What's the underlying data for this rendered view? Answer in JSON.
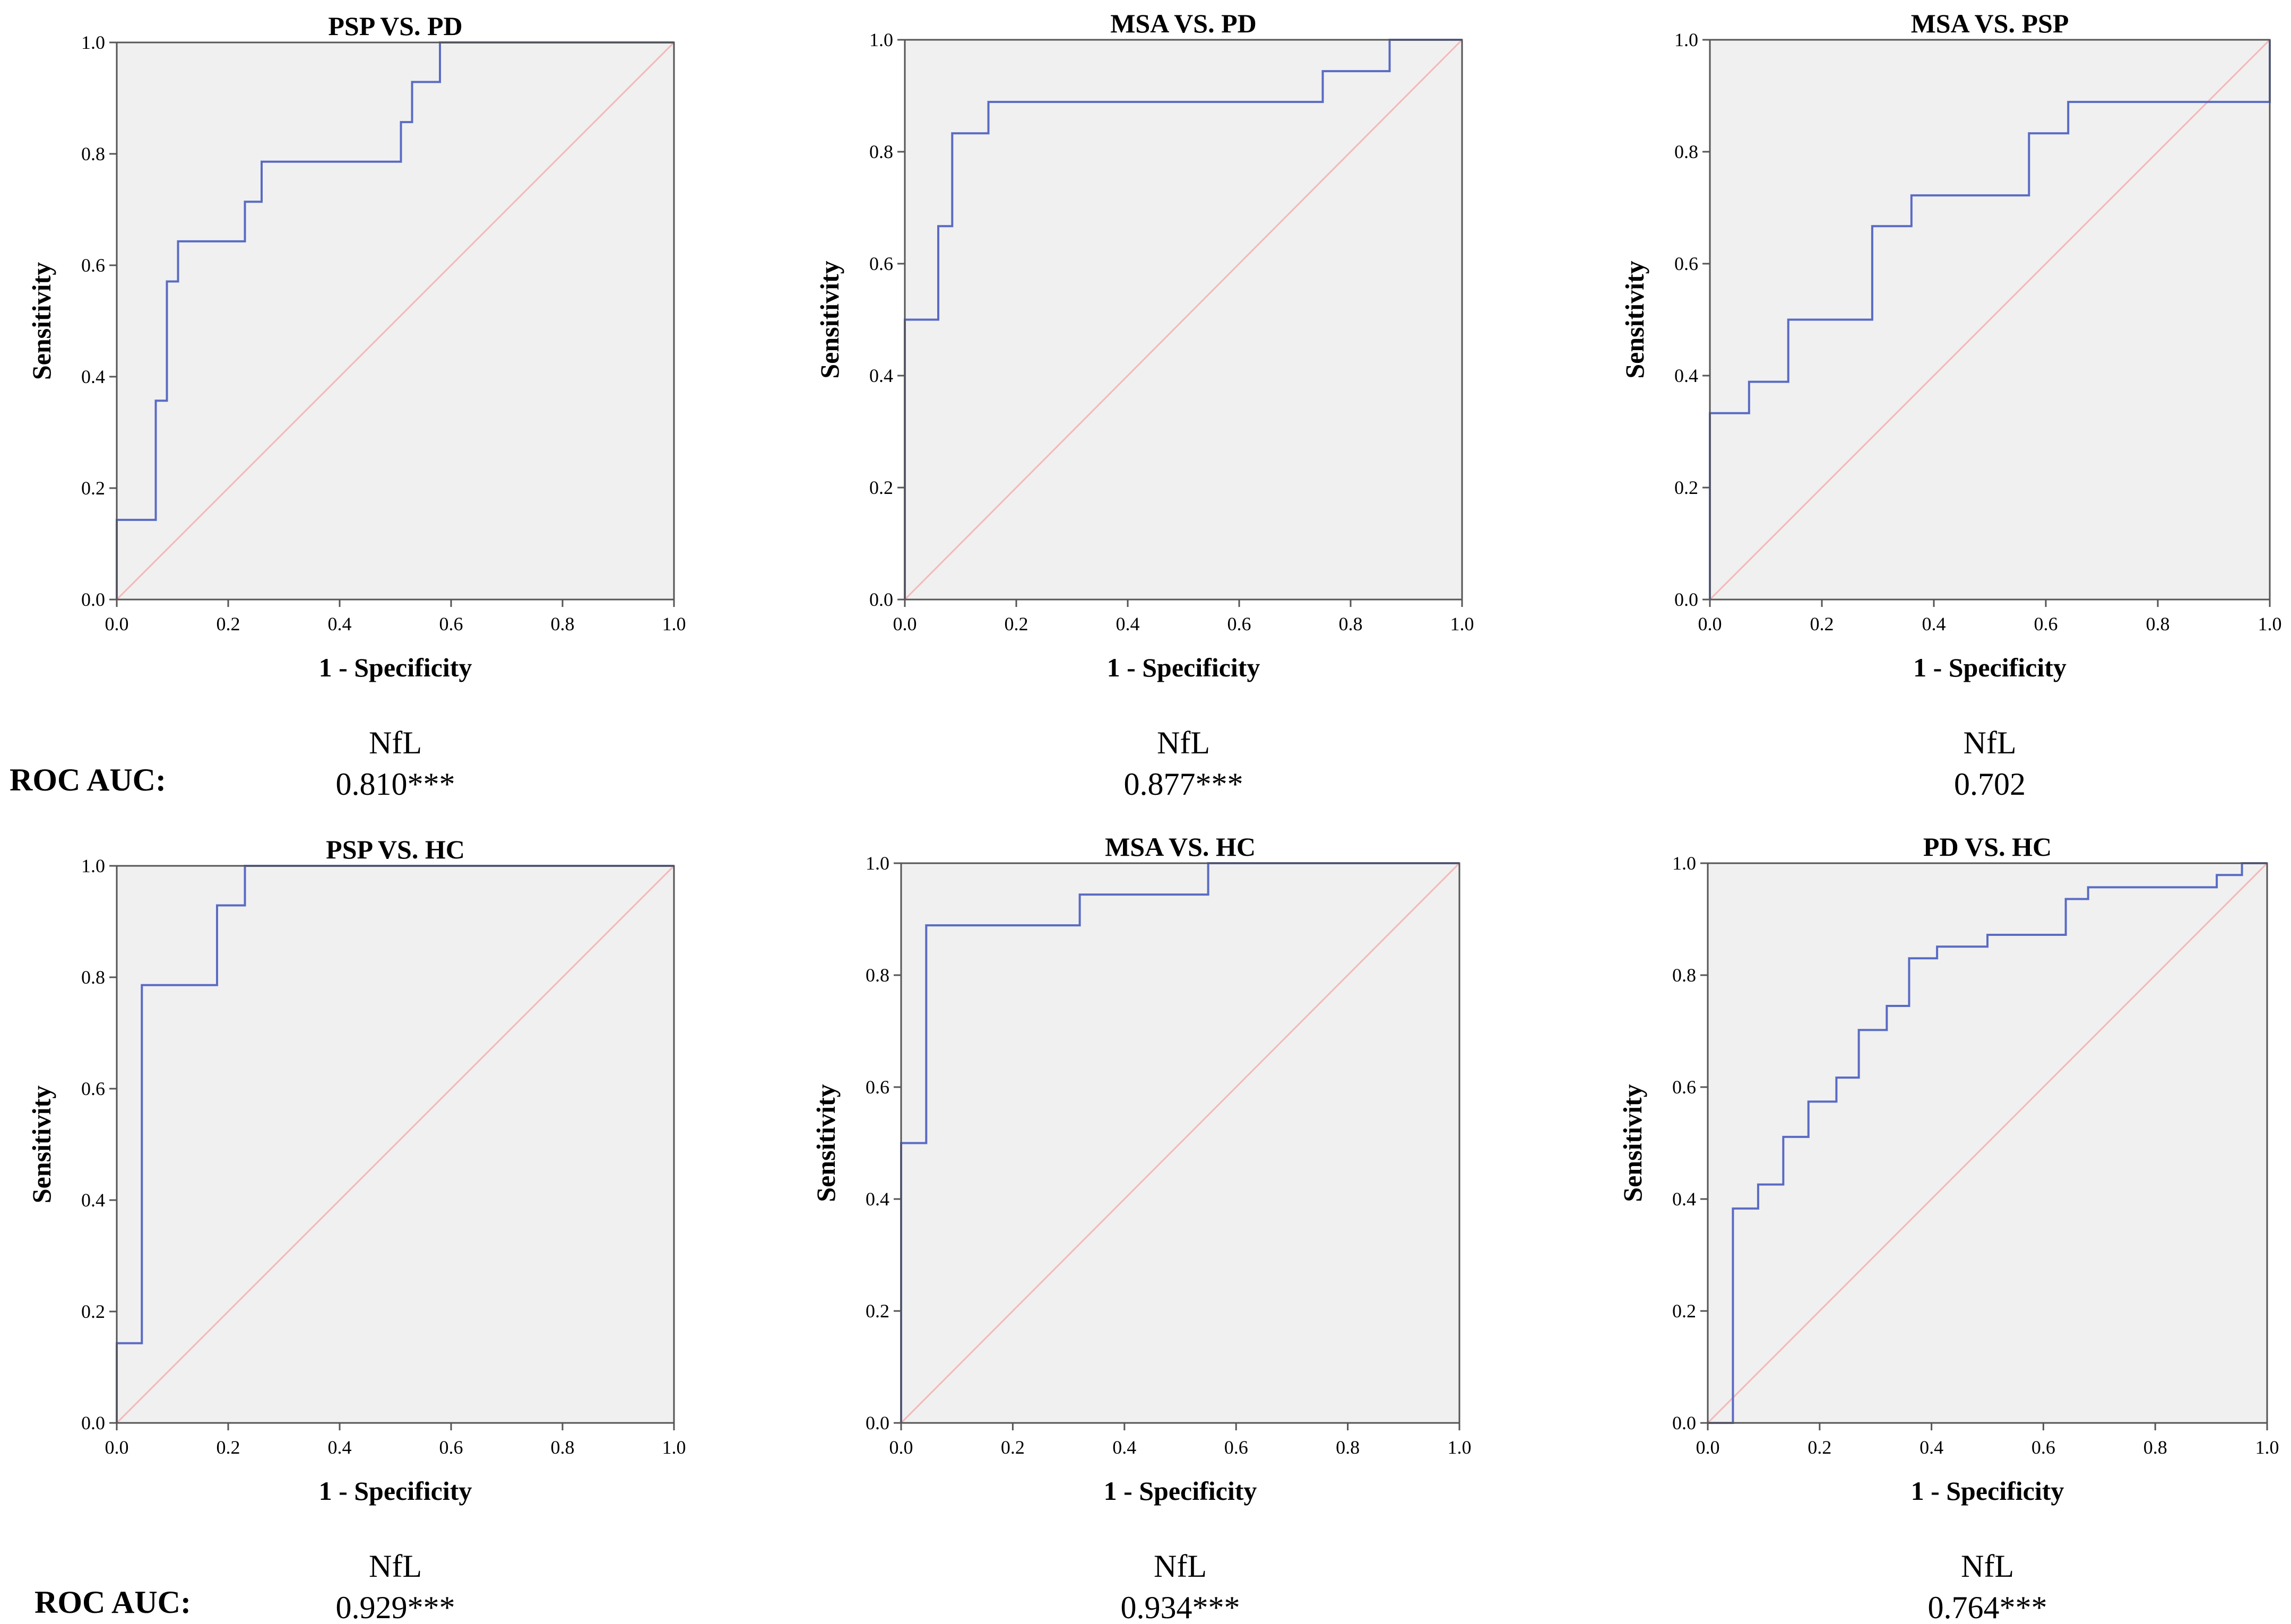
{
  "roc_auc_label": "ROC AUC:",
  "chart_data": [
    {
      "type": "line",
      "title": "PSP VS. PD",
      "xlabel": "1 - Specificity",
      "ylabel": "Sensitivity",
      "xlim": [
        0,
        1
      ],
      "ylim": [
        0,
        1
      ],
      "ticks": [
        "0.0",
        "0.2",
        "0.4",
        "0.6",
        "0.8",
        "1.0"
      ],
      "marker": "NfL",
      "auc": "0.810***",
      "roc": [
        [
          0,
          0
        ],
        [
          0,
          0.143
        ],
        [
          0.07,
          0.143
        ],
        [
          0.07,
          0.357
        ],
        [
          0.09,
          0.357
        ],
        [
          0.09,
          0.571
        ],
        [
          0.11,
          0.571
        ],
        [
          0.11,
          0.643
        ],
        [
          0.23,
          0.643
        ],
        [
          0.23,
          0.714
        ],
        [
          0.26,
          0.714
        ],
        [
          0.26,
          0.786
        ],
        [
          0.51,
          0.786
        ],
        [
          0.51,
          0.857
        ],
        [
          0.53,
          0.857
        ],
        [
          0.53,
          0.929
        ],
        [
          0.58,
          0.929
        ],
        [
          0.58,
          1.0
        ],
        [
          1.0,
          1.0
        ]
      ]
    },
    {
      "type": "line",
      "title": "MSA VS. PD",
      "xlabel": "1 - Specificity",
      "ylabel": "Sensitivity",
      "xlim": [
        0,
        1
      ],
      "ylim": [
        0,
        1
      ],
      "ticks": [
        "0.0",
        "0.2",
        "0.4",
        "0.6",
        "0.8",
        "1.0"
      ],
      "marker": "NfL",
      "auc": "0.877***",
      "roc": [
        [
          0,
          0
        ],
        [
          0,
          0.5
        ],
        [
          0.06,
          0.5
        ],
        [
          0.06,
          0.667
        ],
        [
          0.085,
          0.667
        ],
        [
          0.085,
          0.833
        ],
        [
          0.15,
          0.833
        ],
        [
          0.15,
          0.889
        ],
        [
          0.75,
          0.889
        ],
        [
          0.75,
          0.944
        ],
        [
          0.87,
          0.944
        ],
        [
          0.87,
          1.0
        ],
        [
          1.0,
          1.0
        ]
      ]
    },
    {
      "type": "line",
      "title": "MSA VS. PSP",
      "xlabel": "1 - Specificity",
      "ylabel": "Sensitivity",
      "xlim": [
        0,
        1
      ],
      "ylim": [
        0,
        1
      ],
      "ticks": [
        "0.0",
        "0.2",
        "0.4",
        "0.6",
        "0.8",
        "1.0"
      ],
      "marker": "NfL",
      "auc": "0.702",
      "roc": [
        [
          0,
          0
        ],
        [
          0,
          0.333
        ],
        [
          0.07,
          0.333
        ],
        [
          0.07,
          0.389
        ],
        [
          0.14,
          0.389
        ],
        [
          0.14,
          0.5
        ],
        [
          0.29,
          0.5
        ],
        [
          0.29,
          0.667
        ],
        [
          0.36,
          0.667
        ],
        [
          0.36,
          0.722
        ],
        [
          0.57,
          0.722
        ],
        [
          0.57,
          0.833
        ],
        [
          0.64,
          0.833
        ],
        [
          0.64,
          0.889
        ],
        [
          1.0,
          0.889
        ],
        [
          1.0,
          1.0
        ]
      ]
    },
    {
      "type": "line",
      "title": "PSP VS. HC",
      "xlabel": "1 - Specificity",
      "ylabel": "Sensitivity",
      "xlim": [
        0,
        1
      ],
      "ylim": [
        0,
        1
      ],
      "ticks": [
        "0.0",
        "0.2",
        "0.4",
        "0.6",
        "0.8",
        "1.0"
      ],
      "marker": "NfL",
      "auc": "0.929***",
      "roc": [
        [
          0,
          0
        ],
        [
          0,
          0.143
        ],
        [
          0.045,
          0.143
        ],
        [
          0.045,
          0.786
        ],
        [
          0.18,
          0.786
        ],
        [
          0.18,
          0.929
        ],
        [
          0.23,
          0.929
        ],
        [
          0.23,
          1.0
        ],
        [
          1.0,
          1.0
        ]
      ]
    },
    {
      "type": "line",
      "title": "MSA VS. HC",
      "xlabel": "1 - Specificity",
      "ylabel": "Sensitivity",
      "xlim": [
        0,
        1
      ],
      "ylim": [
        0,
        1
      ],
      "ticks": [
        "0.0",
        "0.2",
        "0.4",
        "0.6",
        "0.8",
        "1.0"
      ],
      "marker": "NfL",
      "auc": "0.934***",
      "roc": [
        [
          0,
          0
        ],
        [
          0,
          0.5
        ],
        [
          0.045,
          0.5
        ],
        [
          0.045,
          0.889
        ],
        [
          0.32,
          0.889
        ],
        [
          0.32,
          0.944
        ],
        [
          0.55,
          0.944
        ],
        [
          0.55,
          1.0
        ],
        [
          1.0,
          1.0
        ]
      ]
    },
    {
      "type": "line",
      "title": "PD VS. HC",
      "xlabel": "1 - Specificity",
      "ylabel": "Sensitivity",
      "xlim": [
        0,
        1
      ],
      "ylim": [
        0,
        1
      ],
      "ticks": [
        "0.0",
        "0.2",
        "0.4",
        "0.6",
        "0.8",
        "1.0"
      ],
      "marker": "NfL",
      "auc": "0.764***",
      "roc": [
        [
          0,
          0
        ],
        [
          0.045,
          0
        ],
        [
          0.045,
          0.383
        ],
        [
          0.09,
          0.383
        ],
        [
          0.09,
          0.426
        ],
        [
          0.135,
          0.426
        ],
        [
          0.135,
          0.511
        ],
        [
          0.18,
          0.511
        ],
        [
          0.18,
          0.574
        ],
        [
          0.23,
          0.574
        ],
        [
          0.23,
          0.617
        ],
        [
          0.27,
          0.617
        ],
        [
          0.27,
          0.702
        ],
        [
          0.32,
          0.702
        ],
        [
          0.32,
          0.745
        ],
        [
          0.36,
          0.745
        ],
        [
          0.36,
          0.83
        ],
        [
          0.41,
          0.83
        ],
        [
          0.41,
          0.851
        ],
        [
          0.5,
          0.851
        ],
        [
          0.5,
          0.872
        ],
        [
          0.64,
          0.872
        ],
        [
          0.64,
          0.936
        ],
        [
          0.68,
          0.936
        ],
        [
          0.68,
          0.957
        ],
        [
          0.91,
          0.957
        ],
        [
          0.91,
          0.979
        ],
        [
          0.955,
          0.979
        ],
        [
          0.955,
          1.0
        ],
        [
          1.0,
          1.0
        ]
      ]
    }
  ]
}
